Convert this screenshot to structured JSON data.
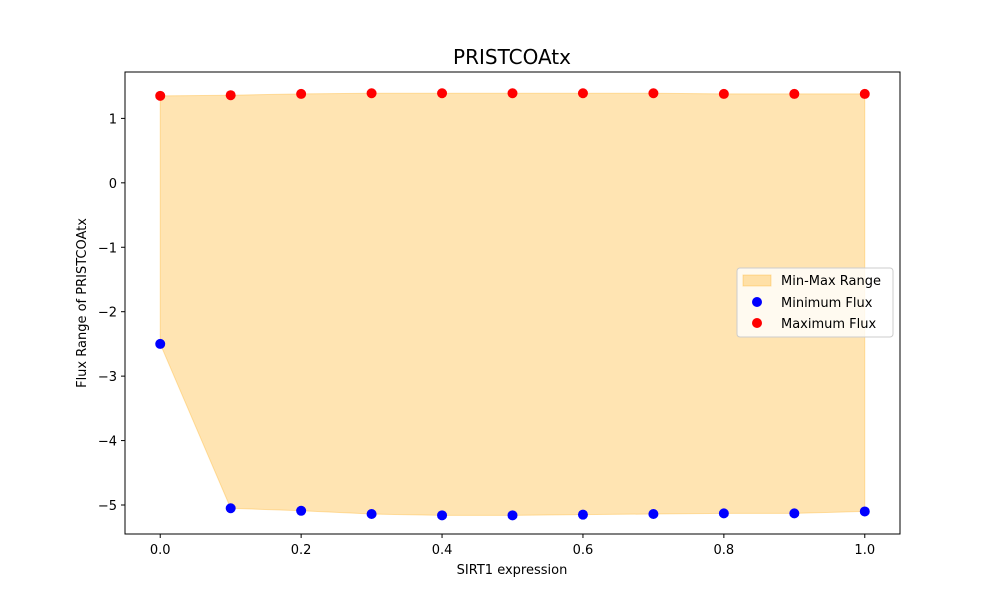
{
  "chart_data": {
    "type": "scatter",
    "title": "PRISTCOAtx",
    "xlabel": "SIRT1 expression",
    "ylabel": "Flux Range of PRISTCOAtx",
    "xlim": [
      -0.05,
      1.05
    ],
    "ylim": [
      -5.45,
      1.72
    ],
    "x": [
      0.0,
      0.1,
      0.2,
      0.3,
      0.4,
      0.5,
      0.6,
      0.7,
      0.8,
      0.9,
      1.0
    ],
    "series": [
      {
        "name": "Minimum Flux",
        "color": "#0000ff",
        "values": [
          -2.5,
          -5.05,
          -5.09,
          -5.14,
          -5.16,
          -5.16,
          -5.15,
          -5.14,
          -5.13,
          -5.13,
          -5.1
        ]
      },
      {
        "name": "Maximum Flux",
        "color": "#ff0000",
        "values": [
          1.35,
          1.36,
          1.38,
          1.39,
          1.39,
          1.39,
          1.39,
          1.39,
          1.38,
          1.38,
          1.38
        ]
      }
    ],
    "fill": {
      "name": "Min-Max Range",
      "color": "#ffa500",
      "opacity": 0.3
    },
    "xticks": [
      "0.0",
      "0.2",
      "0.4",
      "0.6",
      "0.8",
      "1.0"
    ],
    "xtick_values": [
      0.0,
      0.2,
      0.4,
      0.6,
      0.8,
      1.0
    ],
    "yticks": [
      "−5",
      "−4",
      "−3",
      "−2",
      "−1",
      "0",
      "1"
    ],
    "ytick_values": [
      -5,
      -4,
      -3,
      -2,
      -1,
      0,
      1
    ],
    "legend": {
      "placement": "center-right",
      "entries": [
        "Min-Max Range",
        "Minimum Flux",
        "Maximum Flux"
      ]
    },
    "grid": false
  }
}
